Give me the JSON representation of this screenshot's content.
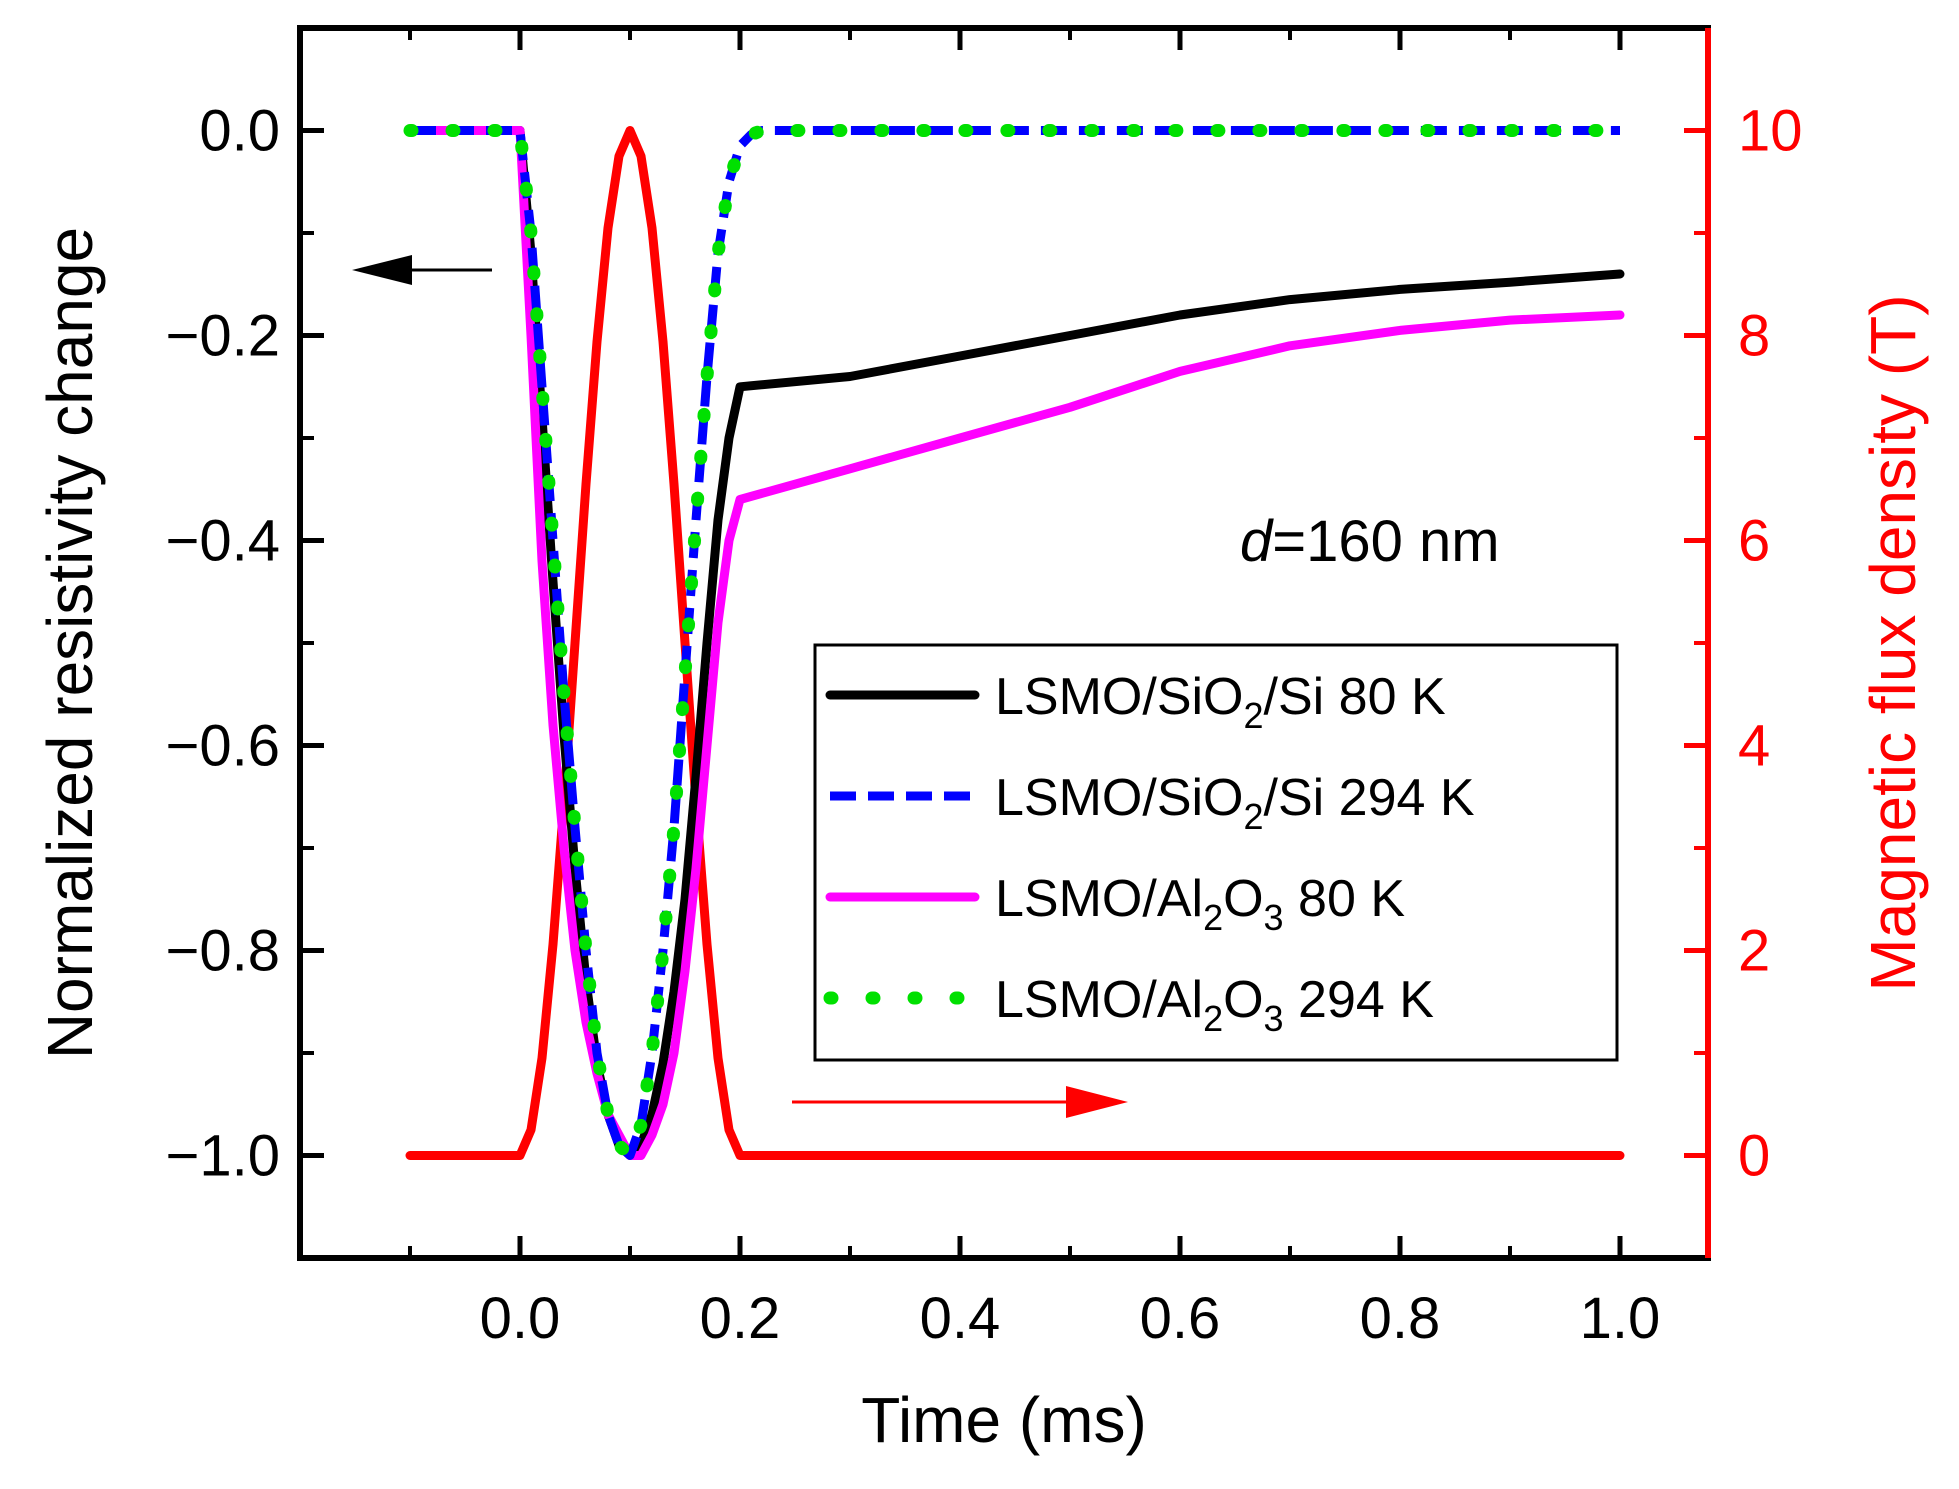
{
  "chart_data": {
    "type": "line",
    "title": "",
    "xlabel": "Time (ms)",
    "ylabel_left": "Normalized resistivity change",
    "ylabel_right": "Magnetic flux density (T)",
    "xlim": [
      -0.2,
      1.08
    ],
    "ylim_left": [
      -1.1,
      0.1
    ],
    "ylim_right": [
      -1,
      11
    ],
    "x_ticks": [
      0.0,
      0.2,
      0.4,
      0.6,
      0.8,
      1.0
    ],
    "x_tick_labels": [
      "0.0",
      "0.2",
      "0.4",
      "0.6",
      "0.8",
      "1.0"
    ],
    "y_left_ticks": [
      0.0,
      -0.2,
      -0.4,
      -0.6,
      -0.8,
      -1.0
    ],
    "y_left_tick_labels": [
      "0.0",
      "−0.2",
      "−0.4",
      "−0.6",
      "−0.8",
      "−1.0"
    ],
    "y_right_ticks": [
      10,
      8,
      6,
      4,
      2,
      0
    ],
    "y_right_tick_labels": [
      "10",
      "8",
      "6",
      "4",
      "2",
      "0"
    ],
    "annotation": {
      "italic": "d",
      "text": "=160 nm"
    },
    "colors": {
      "axis": "#000000",
      "right_axis": "#ff0000",
      "field": "#ff0000",
      "s80": "#000000",
      "s294": "#0000ff",
      "a80": "#ff00ff",
      "a294": "#00e000"
    },
    "legend": [
      {
        "key": "s80",
        "parts": [
          "LSMO/SiO",
          "2",
          "/Si 80 K"
        ],
        "subs": [
          1
        ],
        "style": "solid"
      },
      {
        "key": "s294",
        "parts": [
          "LSMO/SiO",
          "2",
          "/Si 294 K"
        ],
        "subs": [
          1
        ],
        "style": "dash"
      },
      {
        "key": "a80",
        "parts": [
          "LSMO/Al",
          "2",
          "O",
          "3",
          " 80 K"
        ],
        "subs": [
          1,
          3
        ],
        "style": "solid"
      },
      {
        "key": "a294",
        "parts": [
          "LSMO/Al",
          "2",
          "O",
          "3",
          " 294 K"
        ],
        "subs": [
          1,
          3
        ],
        "style": "dot"
      }
    ],
    "series": [
      {
        "name": "LSMO/SiO2/Si 80 K",
        "axis": "left",
        "key": "s80",
        "style": "solid",
        "x": [
          -0.1,
          0.0,
          0.01,
          0.02,
          0.03,
          0.04,
          0.05,
          0.06,
          0.07,
          0.08,
          0.09,
          0.1,
          0.11,
          0.12,
          0.13,
          0.14,
          0.15,
          0.16,
          0.17,
          0.18,
          0.19,
          0.2,
          0.3,
          0.4,
          0.5,
          0.6,
          0.7,
          0.8,
          0.9,
          1.0
        ],
        "y": [
          0.0,
          0.0,
          -0.12,
          -0.28,
          -0.44,
          -0.59,
          -0.72,
          -0.83,
          -0.91,
          -0.96,
          -0.99,
          -1.0,
          -0.99,
          -0.96,
          -0.91,
          -0.84,
          -0.75,
          -0.63,
          -0.5,
          -0.38,
          -0.3,
          -0.25,
          -0.24,
          -0.22,
          -0.2,
          -0.18,
          -0.165,
          -0.155,
          -0.148,
          -0.14
        ]
      },
      {
        "name": "LSMO/SiO2/Si 294 K",
        "axis": "left",
        "key": "s294",
        "style": "dash",
        "x": [
          -0.1,
          0.0,
          0.01,
          0.02,
          0.03,
          0.04,
          0.05,
          0.06,
          0.07,
          0.08,
          0.09,
          0.1,
          0.11,
          0.12,
          0.13,
          0.14,
          0.15,
          0.16,
          0.17,
          0.18,
          0.19,
          0.2,
          0.21,
          0.22,
          0.25,
          0.3,
          0.4,
          0.6,
          0.8,
          1.0
        ],
        "y": [
          0.0,
          0.0,
          -0.1,
          -0.25,
          -0.4,
          -0.55,
          -0.68,
          -0.8,
          -0.9,
          -0.96,
          -0.99,
          -1.0,
          -0.97,
          -0.9,
          -0.8,
          -0.68,
          -0.53,
          -0.38,
          -0.24,
          -0.12,
          -0.05,
          -0.015,
          -0.004,
          0.0,
          0.0,
          0.0,
          0.0,
          0.0,
          0.0,
          0.0
        ]
      },
      {
        "name": "LSMO/Al2O3 80 K",
        "axis": "left",
        "key": "a80",
        "style": "solid",
        "x": [
          -0.1,
          0.0,
          0.01,
          0.02,
          0.03,
          0.04,
          0.05,
          0.06,
          0.07,
          0.08,
          0.09,
          0.1,
          0.11,
          0.12,
          0.13,
          0.14,
          0.15,
          0.16,
          0.17,
          0.18,
          0.19,
          0.2,
          0.3,
          0.4,
          0.5,
          0.6,
          0.7,
          0.8,
          0.9,
          1.0
        ],
        "y": [
          0.0,
          0.0,
          -0.2,
          -0.42,
          -0.58,
          -0.7,
          -0.8,
          -0.87,
          -0.92,
          -0.96,
          -0.98,
          -1.0,
          -1.0,
          -0.98,
          -0.95,
          -0.9,
          -0.82,
          -0.72,
          -0.6,
          -0.48,
          -0.4,
          -0.36,
          -0.33,
          -0.3,
          -0.27,
          -0.235,
          -0.21,
          -0.195,
          -0.185,
          -0.18
        ]
      },
      {
        "name": "LSMO/Al2O3 294 K",
        "axis": "left",
        "key": "a294",
        "style": "dot",
        "x": [
          -0.1,
          0.0,
          0.01,
          0.02,
          0.03,
          0.04,
          0.05,
          0.06,
          0.07,
          0.08,
          0.09,
          0.1,
          0.11,
          0.12,
          0.13,
          0.14,
          0.15,
          0.16,
          0.17,
          0.18,
          0.19,
          0.2,
          0.21,
          0.22,
          0.25,
          0.3,
          0.4,
          0.6,
          0.8,
          1.0
        ],
        "y": [
          0.0,
          0.0,
          -0.1,
          -0.25,
          -0.4,
          -0.55,
          -0.68,
          -0.8,
          -0.9,
          -0.96,
          -0.99,
          -1.0,
          -0.97,
          -0.9,
          -0.8,
          -0.68,
          -0.53,
          -0.38,
          -0.24,
          -0.12,
          -0.05,
          -0.015,
          -0.004,
          0.0,
          0.0,
          0.0,
          0.0,
          0.0,
          0.0,
          0.0
        ]
      },
      {
        "name": "Magnetic flux density",
        "axis": "right",
        "key": "field",
        "style": "solid",
        "x": [
          -0.1,
          0.0,
          0.01,
          0.02,
          0.03,
          0.04,
          0.05,
          0.06,
          0.07,
          0.08,
          0.09,
          0.1,
          0.11,
          0.12,
          0.13,
          0.14,
          0.15,
          0.16,
          0.17,
          0.18,
          0.19,
          0.2,
          0.3,
          0.5,
          0.7,
          1.0
        ],
        "y": [
          0.0,
          0.0,
          0.25,
          0.95,
          2.06,
          3.45,
          5.0,
          6.55,
          7.94,
          9.05,
          9.75,
          10.0,
          9.75,
          9.05,
          7.94,
          6.55,
          5.0,
          3.45,
          2.06,
          0.95,
          0.25,
          0.0,
          0.0,
          0.0,
          0.0,
          0.0
        ]
      }
    ]
  }
}
